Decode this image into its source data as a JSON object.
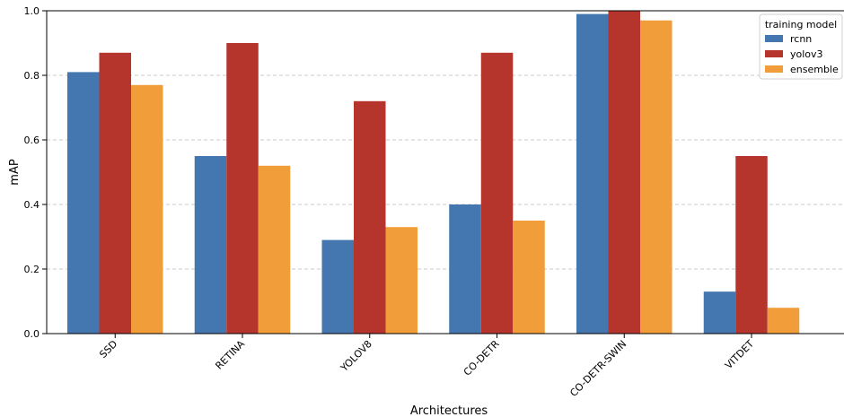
{
  "chart_data": {
    "type": "bar",
    "title": "",
    "xlabel": "Architectures",
    "ylabel": "mAP",
    "ylim": [
      0,
      1.0
    ],
    "yticks": [
      "0.0",
      "0.2",
      "0.4",
      "0.6",
      "0.8",
      "1.0"
    ],
    "grid": "y-dashed",
    "legend_title": "training model",
    "legend_position": "top-right",
    "categories": [
      "SSD",
      "RETINA",
      "YOLOV8",
      "CO-DETR",
      "CO-DETR-SWIN",
      "VITDET"
    ],
    "series": [
      {
        "name": "rcnn",
        "color": "#4477b0",
        "values": [
          0.81,
          0.55,
          0.29,
          0.4,
          0.99,
          0.13
        ]
      },
      {
        "name": "yolov3",
        "color": "#b5352d",
        "values": [
          0.87,
          0.9,
          0.72,
          0.87,
          1.0,
          0.55
        ]
      },
      {
        "name": "ensemble",
        "color": "#f19e3a",
        "values": [
          0.77,
          0.52,
          0.33,
          0.35,
          0.97,
          0.08
        ]
      }
    ]
  }
}
